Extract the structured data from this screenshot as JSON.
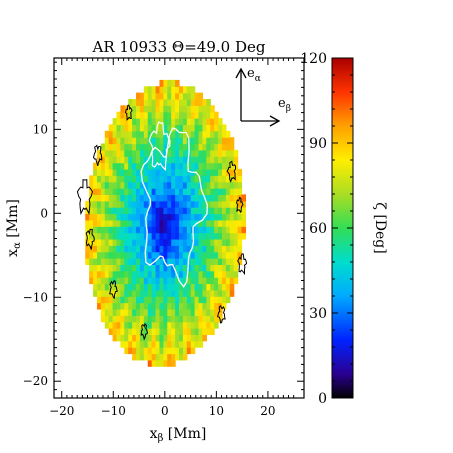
{
  "chart_data": {
    "type": "heatmap",
    "title": "AR 10933 Θ=49.0 Deg",
    "xlabel": "xβ [Mm]",
    "ylabel": "xα [Mm]",
    "xlim": [
      -21.5,
      27
    ],
    "ylim": [
      -22,
      18.5
    ],
    "x_ticks": [
      -20,
      -10,
      0,
      10,
      20
    ],
    "y_ticks": [
      -20,
      -10,
      0,
      10
    ],
    "colorbar": {
      "label": "ζ [Deg]",
      "range": [
        0,
        120
      ],
      "ticks": [
        0,
        30,
        60,
        90,
        120
      ],
      "colormap": "rainbow"
    },
    "disk": {
      "center": [
        0.0,
        -1.2
      ],
      "semi_axes_beta_alpha": [
        15.3,
        17.0
      ],
      "rotation_deg": -17,
      "zeta_center_deg": 8,
      "zeta_edge_deg": 88
    },
    "umbra_contour_color": "#ffffff",
    "hot_contour_color": "#000000",
    "vectors": {
      "alpha_label": "eα",
      "beta_label": "eβ"
    }
  }
}
